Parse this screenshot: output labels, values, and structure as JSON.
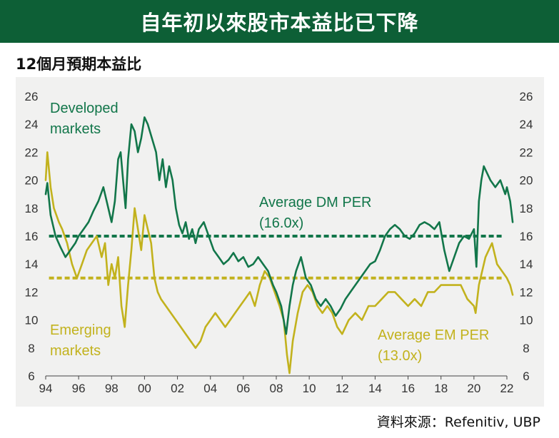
{
  "header": {
    "title": "自年初以來股市本益比已下降"
  },
  "subtitle": "12個月預期本益比",
  "source": "資料來源：Refenitiv, UBP",
  "colors": {
    "banner": "#0d5f36",
    "dm": "#12764a",
    "em": "#c2b21d",
    "panel": "#f1f1f0"
  },
  "chart_data": {
    "type": "line",
    "title": "",
    "xlabel": "",
    "ylabel": "",
    "xlim": [
      1994,
      2022
    ],
    "ylim": [
      6,
      26
    ],
    "x_ticks": [
      "94",
      "96",
      "98",
      "00",
      "02",
      "04",
      "06",
      "08",
      "10",
      "12",
      "14",
      "16",
      "18",
      "20",
      "22"
    ],
    "y_ticks": [
      6,
      8,
      10,
      12,
      14,
      16,
      18,
      20,
      22,
      24,
      26
    ],
    "grid": false,
    "labels": {
      "dm_series": [
        "Developed",
        "markets"
      ],
      "em_series": [
        "Emerging",
        "markets"
      ],
      "dm_avg": [
        "Average DM PER",
        "(16.0x)"
      ],
      "em_avg": [
        "Average EM PER",
        "(13.0x)"
      ]
    },
    "averages": [
      {
        "name": "Average DM PER",
        "value": 16.0
      },
      {
        "name": "Average EM PER",
        "value": 13.0
      }
    ],
    "series": [
      {
        "name": "Developed markets",
        "x": [
          1994.0,
          1994.1,
          1994.3,
          1994.6,
          1994.9,
          1995.2,
          1995.5,
          1995.8,
          1996.0,
          1996.3,
          1996.6,
          1996.9,
          1997.2,
          1997.5,
          1997.8,
          1998.0,
          1998.2,
          1998.4,
          1998.55,
          1998.7,
          1998.85,
          1999.0,
          1999.2,
          1999.4,
          1999.6,
          1999.8,
          2000.0,
          2000.2,
          2000.45,
          2000.7,
          2000.9,
          2001.1,
          2001.3,
          2001.5,
          2001.7,
          2001.9,
          2002.1,
          2002.3,
          2002.5,
          2002.7,
          2002.9,
          2003.1,
          2003.3,
          2003.6,
          2003.9,
          2004.2,
          2004.5,
          2004.8,
          2005.1,
          2005.4,
          2005.7,
          2006.0,
          2006.3,
          2006.6,
          2006.9,
          2007.2,
          2007.5,
          2007.8,
          2008.0,
          2008.3,
          2008.6,
          2008.8,
          2009.0,
          2009.2,
          2009.5,
          2009.8,
          2010.1,
          2010.4,
          2010.7,
          2011.0,
          2011.3,
          2011.6,
          2011.9,
          2012.2,
          2012.5,
          2012.8,
          2013.1,
          2013.4,
          2013.7,
          2014.0,
          2014.3,
          2014.6,
          2014.9,
          2015.2,
          2015.5,
          2015.8,
          2016.1,
          2016.4,
          2016.7,
          2017.0,
          2017.3,
          2017.6,
          2017.9,
          2018.2,
          2018.5,
          2018.8,
          2019.1,
          2019.4,
          2019.7,
          2020.0,
          2020.15,
          2020.3,
          2020.45,
          2020.6,
          2020.8,
          2021.0,
          2021.3,
          2021.6,
          2021.9,
          2022.0,
          2022.2,
          2022.35
        ],
        "values": [
          19.0,
          19.8,
          17.5,
          16.0,
          15.2,
          14.5,
          15.0,
          15.5,
          16.0,
          16.5,
          17.0,
          17.8,
          18.5,
          19.5,
          18.0,
          17.0,
          18.5,
          21.5,
          22.0,
          20.0,
          18.0,
          21.5,
          24.0,
          23.5,
          22.0,
          23.0,
          24.5,
          24.0,
          23.0,
          22.0,
          20.0,
          21.5,
          19.5,
          21.0,
          20.0,
          18.0,
          16.8,
          16.2,
          17.0,
          15.8,
          16.5,
          15.5,
          16.5,
          17.0,
          16.0,
          15.0,
          14.5,
          14.0,
          14.3,
          14.8,
          14.2,
          14.5,
          13.8,
          14.0,
          14.5,
          14.0,
          13.5,
          12.5,
          12.0,
          11.0,
          9.0,
          11.0,
          12.5,
          13.5,
          14.5,
          13.0,
          12.5,
          11.5,
          11.0,
          11.5,
          11.0,
          10.3,
          10.8,
          11.5,
          12.0,
          12.5,
          13.0,
          13.5,
          14.0,
          14.2,
          15.0,
          16.0,
          16.5,
          16.8,
          16.5,
          16.0,
          15.8,
          16.2,
          16.8,
          17.0,
          16.8,
          16.5,
          17.0,
          15.0,
          13.5,
          14.5,
          15.5,
          16.0,
          15.8,
          16.5,
          13.8,
          18.5,
          20.0,
          21.0,
          20.5,
          20.0,
          19.5,
          20.0,
          19.0,
          19.5,
          18.5,
          17.0
        ]
      },
      {
        "name": "Emerging markets",
        "x": [
          1994.0,
          1994.1,
          1994.3,
          1994.5,
          1994.8,
          1995.0,
          1995.3,
          1995.6,
          1995.9,
          1996.2,
          1996.5,
          1996.8,
          1997.1,
          1997.4,
          1997.6,
          1997.8,
          1998.0,
          1998.2,
          1998.4,
          1998.6,
          1998.8,
          1999.0,
          1999.2,
          1999.4,
          1999.6,
          1999.8,
          2000.0,
          2000.2,
          2000.4,
          2000.6,
          2000.8,
          2001.0,
          2001.3,
          2001.6,
          2001.9,
          2002.2,
          2002.5,
          2002.8,
          2003.1,
          2003.4,
          2003.7,
          2004.0,
          2004.3,
          2004.6,
          2004.9,
          2005.2,
          2005.5,
          2005.8,
          2006.1,
          2006.4,
          2006.7,
          2007.0,
          2007.3,
          2007.6,
          2007.9,
          2008.2,
          2008.45,
          2008.65,
          2008.8,
          2009.0,
          2009.3,
          2009.6,
          2009.9,
          2010.2,
          2010.5,
          2010.8,
          2011.1,
          2011.4,
          2011.7,
          2012.0,
          2012.4,
          2012.8,
          2013.2,
          2013.6,
          2014.0,
          2014.4,
          2014.8,
          2015.2,
          2015.6,
          2016.0,
          2016.4,
          2016.8,
          2017.2,
          2017.6,
          2018.0,
          2018.4,
          2018.8,
          2019.2,
          2019.6,
          2020.0,
          2020.1,
          2020.3,
          2020.5,
          2020.7,
          2020.9,
          2021.1,
          2021.4,
          2021.7,
          2022.0,
          2022.2,
          2022.35
        ],
        "values": [
          20.0,
          22.0,
          19.5,
          18.0,
          17.0,
          16.5,
          15.5,
          14.0,
          13.0,
          14.0,
          15.0,
          15.5,
          16.0,
          14.5,
          15.5,
          12.5,
          14.0,
          13.0,
          14.5,
          11.0,
          9.5,
          12.5,
          15.0,
          18.0,
          16.5,
          15.0,
          17.5,
          16.5,
          15.5,
          13.0,
          12.0,
          11.5,
          11.0,
          10.5,
          10.0,
          9.5,
          9.0,
          8.5,
          8.0,
          8.5,
          9.5,
          10.0,
          10.5,
          10.0,
          9.5,
          10.0,
          10.5,
          11.0,
          11.5,
          12.0,
          11.0,
          12.5,
          13.5,
          13.0,
          12.0,
          11.0,
          10.0,
          7.5,
          6.2,
          8.5,
          10.5,
          12.0,
          12.5,
          12.0,
          11.0,
          10.5,
          11.0,
          10.5,
          9.5,
          9.0,
          10.0,
          10.5,
          10.0,
          11.0,
          11.0,
          11.5,
          12.0,
          12.0,
          11.5,
          11.0,
          11.5,
          11.0,
          12.0,
          12.0,
          12.5,
          12.5,
          12.5,
          12.5,
          11.5,
          11.0,
          10.5,
          12.5,
          13.5,
          14.5,
          15.0,
          15.5,
          14.0,
          13.5,
          13.0,
          12.5,
          11.8
        ]
      }
    ]
  }
}
